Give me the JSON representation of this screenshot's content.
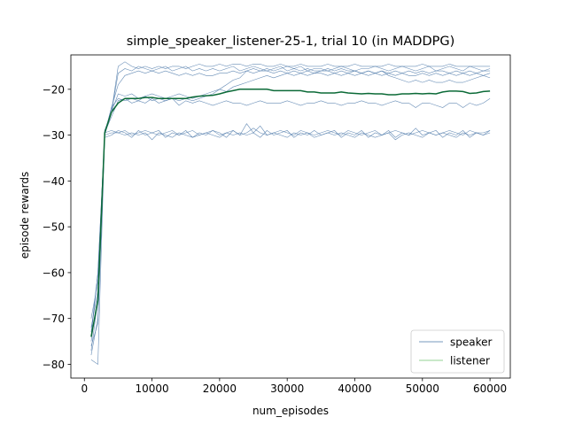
{
  "chart_data": {
    "type": "line",
    "title": "simple_speaker_listener-25-1, trial 10 (in MADDPG)",
    "xlabel": "num_episodes",
    "ylabel": "episode rewards",
    "xlim": [
      -2000,
      63000
    ],
    "ylim": [
      -83,
      -12.5
    ],
    "xticks": [
      0,
      10000,
      20000,
      30000,
      40000,
      50000,
      60000
    ],
    "yticks": [
      -80,
      -70,
      -60,
      -50,
      -40,
      -30,
      -20
    ],
    "grid": false,
    "legend_position": "bottom-right",
    "legend": [
      {
        "label": "speaker",
        "color": "#4a77a8"
      },
      {
        "label": "listener",
        "color": "#6fc46f"
      }
    ],
    "colors": {
      "speaker": "#4a77a8",
      "listener": "#6fc46f",
      "mean": "#0b6a37"
    },
    "x": [
      1000,
      2000,
      3000,
      4000,
      5000,
      6000,
      7000,
      8000,
      9000,
      10000,
      11000,
      12000,
      13000,
      14000,
      15000,
      16000,
      17000,
      18000,
      19000,
      20000,
      21000,
      22000,
      23000,
      24000,
      25000,
      26000,
      27000,
      28000,
      29000,
      30000,
      31000,
      32000,
      33000,
      34000,
      35000,
      36000,
      37000,
      38000,
      39000,
      40000,
      41000,
      42000,
      43000,
      44000,
      45000,
      46000,
      47000,
      48000,
      49000,
      50000,
      51000,
      52000,
      53000,
      54000,
      55000,
      56000,
      57000,
      58000,
      59000,
      60000
    ],
    "series": [
      {
        "values": [
          -74,
          -60,
          -30,
          -25,
          -15,
          -14,
          -15,
          -15.5,
          -15,
          -15.5,
          -15,
          -15.5,
          -15,
          -15,
          -15.5,
          -15,
          -14.5,
          -15,
          -15,
          -14.5,
          -15,
          -14.5,
          -14.5,
          -15,
          -14.5,
          -14.5,
          -15,
          -15,
          -14.5,
          -15,
          -15,
          -14.5,
          -15,
          -15,
          -15,
          -14.5,
          -15,
          -15,
          -15,
          -14.5,
          -15,
          -15,
          -15,
          -15,
          -14.5,
          -15,
          -15,
          -15,
          -15,
          -14.5,
          -15,
          -15,
          -15,
          -14.5,
          -15,
          -15,
          -15,
          -15,
          -15,
          -15
        ]
      },
      {
        "values": [
          -78,
          -70,
          -29,
          -25,
          -16.5,
          -15.5,
          -16,
          -15,
          -15.5,
          -16,
          -15.5,
          -15,
          -16,
          -15.5,
          -15,
          -16,
          -15.5,
          -16,
          -15.5,
          -16,
          -15.5,
          -15,
          -16,
          -15.5,
          -15,
          -15.5,
          -16,
          -15.5,
          -15,
          -16,
          -15.5,
          -15,
          -16,
          -15.5,
          -15.5,
          -16,
          -15.5,
          -15,
          -15.5,
          -16,
          -15.5,
          -15.5,
          -15,
          -15.5,
          -16,
          -15.5,
          -15,
          -15.5,
          -16,
          -15.5,
          -15,
          -16,
          -15.5,
          -15,
          -15.5,
          -16,
          -15,
          -15.5,
          -16,
          -15.5
        ]
      },
      {
        "values": [
          -75,
          -65,
          -29.5,
          -24,
          -19,
          -17,
          -16.5,
          -16,
          -16.5,
          -16,
          -16.5,
          -16,
          -16.5,
          -17,
          -16.5,
          -17,
          -16.5,
          -17,
          -17,
          -16.5,
          -16.5,
          -16,
          -16.5,
          -16,
          -16.5,
          -16,
          -16,
          -16.5,
          -16,
          -16.5,
          -16,
          -16.5,
          -16,
          -16.5,
          -16,
          -16,
          -16.5,
          -16,
          -16.5,
          -16,
          -16.5,
          -16,
          -16.5,
          -16,
          -16.5,
          -16,
          -16.5,
          -16,
          -16.5,
          -16,
          -16.5,
          -16,
          -16,
          -16.5,
          -16,
          -16.5,
          -16,
          -16.5,
          -16,
          -16
        ]
      },
      {
        "values": [
          -72,
          -64,
          -30,
          -24,
          -22,
          -22.5,
          -22,
          -22.5,
          -21.5,
          -22.5,
          -22,
          -22.5,
          -22,
          -22.5,
          -22,
          -22.5,
          -22,
          -21.5,
          -21,
          -20,
          -20.5,
          -19.5,
          -19,
          -18.5,
          -18,
          -17.5,
          -17,
          -17.5,
          -17,
          -16.5,
          -17,
          -16.5,
          -17,
          -16.5,
          -16.5,
          -17,
          -16.5,
          -17,
          -16.5,
          -17,
          -16.5,
          -17,
          -16.5,
          -17,
          -16.5,
          -17,
          -16.5,
          -17,
          -17,
          -16.5,
          -17,
          -16.5,
          -17,
          -16.5,
          -17,
          -16.5,
          -17,
          -16.5,
          -17,
          -16.5
        ]
      },
      {
        "values": [
          -70,
          -62,
          -29,
          -25,
          -21,
          -21.5,
          -21,
          -22,
          -21.5,
          -21,
          -21.5,
          -22,
          -21.5,
          -21,
          -21.5,
          -22,
          -21.5,
          -21,
          -20.5,
          -20,
          -19,
          -18,
          -17.5,
          -16,
          -15.5,
          -16,
          -15.5,
          -16,
          -15.5,
          -15,
          -15.5,
          -16,
          -15.5,
          -16,
          -16,
          -15.5,
          -16,
          -15.5,
          -16,
          -16,
          -16.5,
          -16,
          -16.5,
          -16,
          -17,
          -17.5,
          -18,
          -18.5,
          -18,
          -18.5,
          -18,
          -18.5,
          -18.5,
          -18,
          -18.5,
          -18.5,
          -18,
          -17.5,
          -17,
          -17.5
        ]
      },
      {
        "values": [
          -73,
          -60,
          -29.5,
          -26,
          -22.5,
          -22,
          -23,
          -22.5,
          -23,
          -22,
          -23,
          -22.5,
          -22,
          -23.5,
          -22.5,
          -23,
          -22.5,
          -23,
          -23.5,
          -23,
          -22.5,
          -23,
          -23,
          -23.5,
          -23,
          -22.5,
          -23,
          -23,
          -23,
          -22.5,
          -23,
          -23.5,
          -23,
          -23,
          -22.5,
          -23,
          -23,
          -23.5,
          -23,
          -23,
          -22.5,
          -23,
          -23,
          -23.5,
          -23,
          -22.5,
          -23,
          -23,
          -24,
          -23,
          -23,
          -23.5,
          -24,
          -23,
          -23,
          -24,
          -23,
          -23.5,
          -23,
          -22
        ]
      },
      {
        "values": [
          -79,
          -80,
          -30,
          -29.5,
          -29.5,
          -30,
          -29.5,
          -30,
          -29.5,
          -31,
          -29.5,
          -30,
          -30.5,
          -29.5,
          -30,
          -30.5,
          -30,
          -29.5,
          -30,
          -30.5,
          -29.5,
          -30,
          -29.5,
          -30,
          -29.5,
          -28,
          -30,
          -29.5,
          -30,
          -30.5,
          -29.5,
          -30,
          -29.5,
          -30.5,
          -30,
          -29.5,
          -30,
          -29.5,
          -30,
          -30.5,
          -29.5,
          -30,
          -30.5,
          -30,
          -29.5,
          -31,
          -30,
          -29.5,
          -30,
          -30.5,
          -29.5,
          -30,
          -29.5,
          -30,
          -30.5,
          -29.5,
          -30,
          -29.5,
          -30,
          -29.5
        ]
      },
      {
        "values": [
          -76,
          -71,
          -30.5,
          -30,
          -29,
          -29.5,
          -30.5,
          -29,
          -30,
          -29.5,
          -29,
          -30.5,
          -29.5,
          -30,
          -29,
          -30.5,
          -29.5,
          -30,
          -29,
          -29.5,
          -30.5,
          -29,
          -30,
          -27.5,
          -29.5,
          -30.5,
          -29,
          -30,
          -29.5,
          -29,
          -30.5,
          -29.5,
          -30,
          -29,
          -30,
          -29.5,
          -29,
          -30.5,
          -29.5,
          -30,
          -29,
          -30.5,
          -29.5,
          -30,
          -29,
          -30.5,
          -29.5,
          -30,
          -28.5,
          -30,
          -29.5,
          -29,
          -30.5,
          -29.5,
          -30,
          -29,
          -30.5,
          -29.5,
          -30,
          -29
        ]
      },
      {
        "values": [
          -77,
          -66,
          -29.5,
          -29,
          -29.5,
          -29,
          -30,
          -29.5,
          -29,
          -29.5,
          -30,
          -29.5,
          -29,
          -30,
          -29.5,
          -29,
          -30,
          -29.5,
          -29,
          -30,
          -29.5,
          -29,
          -30,
          -29.5,
          -28.5,
          -29.5,
          -30,
          -29.5,
          -29,
          -29.5,
          -30,
          -29,
          -29.5,
          -30,
          -29.5,
          -29,
          -29.5,
          -30,
          -29,
          -29.5,
          -30,
          -29.5,
          -29,
          -30,
          -29.5,
          -29,
          -29.5,
          -30,
          -29.5,
          -29,
          -29.5,
          -30,
          -29.5,
          -29,
          -29.5,
          -30,
          -29,
          -29.5,
          -29.5,
          -29
        ]
      }
    ],
    "mean_values": [
      -74,
      -66,
      -29.5,
      -25,
      -23,
      -22,
      -22,
      -22,
      -21.8,
      -21.8,
      -22,
      -22,
      -22,
      -22,
      -22,
      -21.7,
      -21.5,
      -21.4,
      -21.3,
      -21,
      -20.6,
      -20.3,
      -20,
      -20,
      -20,
      -20,
      -20,
      -20.3,
      -20.3,
      -20.3,
      -20.3,
      -20.3,
      -20.6,
      -20.6,
      -20.8,
      -20.8,
      -20.8,
      -20.6,
      -20.8,
      -20.9,
      -21,
      -20.9,
      -21,
      -21,
      -21.2,
      -21.2,
      -21,
      -21,
      -20.9,
      -21,
      -20.9,
      -21,
      -20.6,
      -20.4,
      -20.4,
      -20.5,
      -20.9,
      -20.8,
      -20.5,
      -20.4
    ]
  }
}
